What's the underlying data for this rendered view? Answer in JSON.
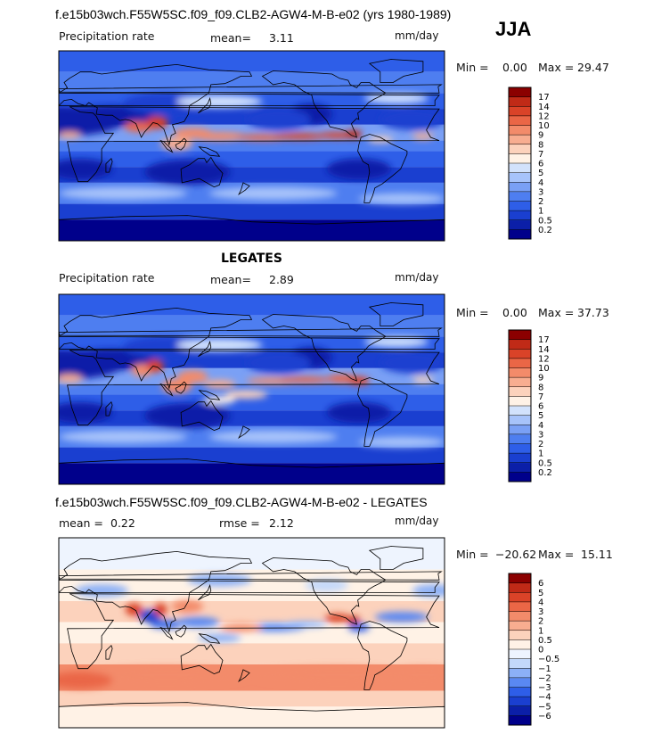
{
  "header": {
    "case_title": "f.e15b03wch.F55W5SC.f09_f09.CLB2-AGW4-M-B-e02 (yrs 1980-1989)",
    "season": "JJA"
  },
  "colors": {
    "precip_scale": [
      "#00008b",
      "#0b1fa8",
      "#1a3fd0",
      "#2e5ee8",
      "#4e7ef0",
      "#7aa0f5",
      "#a7c3fa",
      "#d2e2fc",
      "#fff2e6",
      "#fcd2bc",
      "#f8ad90",
      "#f38b6a",
      "#ea6646",
      "#da4328",
      "#c02a17",
      "#8b0000"
    ],
    "diff_scale": [
      "#00008b",
      "#0b1fa8",
      "#1a3fd0",
      "#2e5ee8",
      "#5a88f2",
      "#8cb0f7",
      "#c3d8fb",
      "#eef4fe",
      "#fff2e6",
      "#fcd2bc",
      "#f8ad90",
      "#f38b6a",
      "#ea6646",
      "#da4328",
      "#c02a17",
      "#8b0000"
    ],
    "coast": "#000000"
  },
  "panels": [
    {
      "left_label": "Precipitation rate",
      "mean_label": "mean=",
      "mean_value": "3.11",
      "rmse_label": "",
      "rmse_value": "",
      "units": "mm/day",
      "min_label": "Min =",
      "min_value": "0.00",
      "max_label": "Max =",
      "max_value": "29.47",
      "colorbar_ticks": [
        "17",
        "14",
        "12",
        "10",
        "9",
        "8",
        "7",
        "6",
        "5",
        "4",
        "3",
        "2",
        "1",
        "0.5",
        "0.2"
      ]
    },
    {
      "title": "LEGATES",
      "left_label": "Precipitation rate",
      "mean_label": "mean=",
      "mean_value": "2.89",
      "rmse_label": "",
      "rmse_value": "",
      "units": "mm/day",
      "min_label": "Min =",
      "min_value": "0.00",
      "max_label": "Max =",
      "max_value": "37.73",
      "colorbar_ticks": [
        "17",
        "14",
        "12",
        "10",
        "9",
        "8",
        "7",
        "6",
        "5",
        "4",
        "3",
        "2",
        "1",
        "0.5",
        "0.2"
      ]
    },
    {
      "title": "f.e15b03wch.F55W5SC.f09_f09.CLB2-AGW4-M-B-e02 - LEGATES",
      "left_label": "",
      "mean_label": "mean =",
      "mean_value": "0.22",
      "rmse_label": "rmse =",
      "rmse_value": "2.12",
      "units": "mm/day",
      "min_label": "Min =",
      "min_value": "−20.62",
      "max_label": "Max =",
      "max_value": "15.11",
      "colorbar_ticks": [
        "6",
        "5",
        "4",
        "3",
        "2",
        "1",
        "0.5",
        "0",
        "−0.5",
        "−1",
        "−2",
        "−3",
        "−4",
        "−5",
        "−6"
      ]
    }
  ],
  "chart_data": [
    {
      "type": "heatmap",
      "title": "f.e15b03wch.F55W5SC.f09_f09.CLB2-AGW4-M-B-e02 (yrs 1980-1989)",
      "variable": "Precipitation rate",
      "units": "mm/day",
      "season": "JJA",
      "mean": 3.11,
      "min": 0.0,
      "max": 29.47,
      "contour_levels": [
        0.2,
        0.5,
        1,
        2,
        3,
        4,
        5,
        6,
        7,
        8,
        9,
        10,
        12,
        14,
        17
      ]
    },
    {
      "type": "heatmap",
      "title": "LEGATES",
      "variable": "Precipitation rate",
      "units": "mm/day",
      "season": "JJA",
      "mean": 2.89,
      "min": 0.0,
      "max": 37.73,
      "contour_levels": [
        0.2,
        0.5,
        1,
        2,
        3,
        4,
        5,
        6,
        7,
        8,
        9,
        10,
        12,
        14,
        17
      ]
    },
    {
      "type": "heatmap",
      "title": "f.e15b03wch.F55W5SC.f09_f09.CLB2-AGW4-M-B-e02 - LEGATES",
      "units": "mm/day",
      "season": "JJA",
      "mean": 0.22,
      "rmse": 2.12,
      "min": -20.62,
      "max": 15.11,
      "contour_levels": [
        -6,
        -5,
        -4,
        -3,
        -2,
        -1,
        -0.5,
        0,
        0.5,
        1,
        2,
        3,
        4,
        5,
        6
      ]
    }
  ]
}
